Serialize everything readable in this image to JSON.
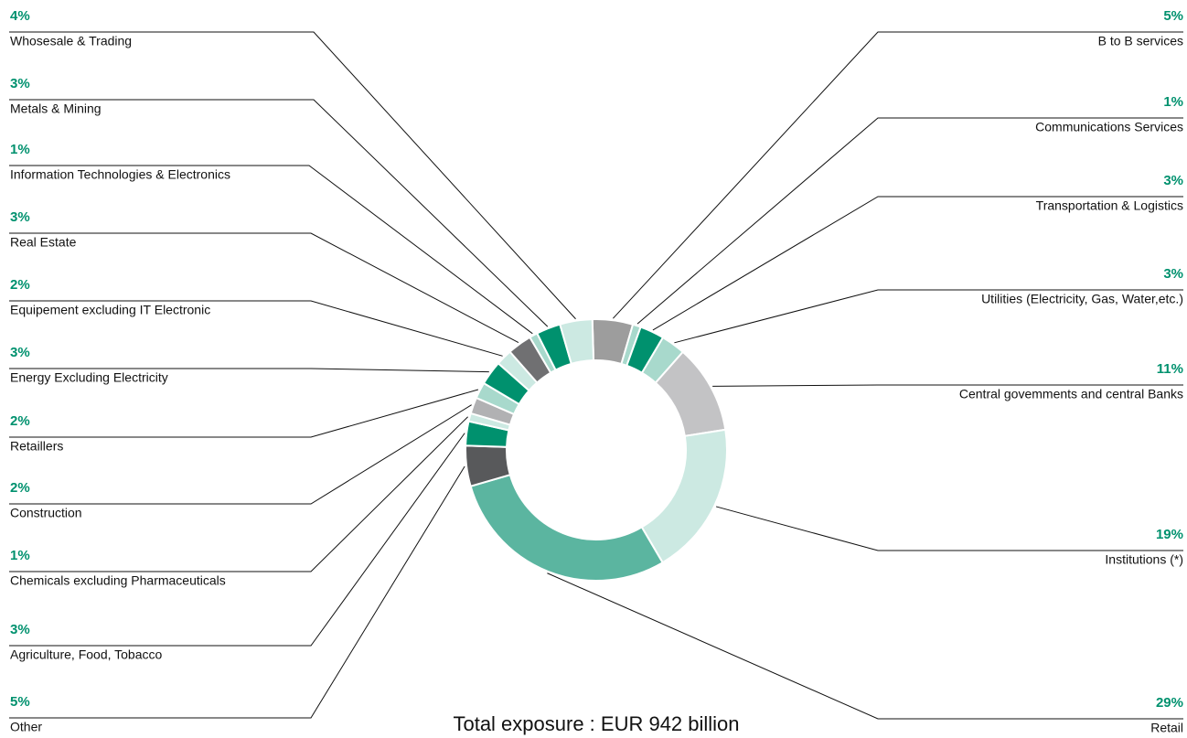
{
  "chart_data": {
    "type": "donut",
    "title": "Total exposure : EUR 942 billion",
    "categories": [
      "B to B services",
      "Communications Services",
      "Transportation & Logistics",
      "Utilities (Electricity, Gas, Water,etc.)",
      "Central govemments and central Banks",
      "Institutions (*)",
      "Retail",
      "Other",
      "Agriculture, Food, Tobacco",
      "Chemicals excluding Pharmaceuticals",
      "Construction",
      "Retaillers",
      "Energy Excluding Electricity",
      "Equipement excluding IT Electronic",
      "Real Estate",
      "Information Technologies & Electronics",
      "Metals & Mining",
      "Whosesale & Trading"
    ],
    "values": [
      5,
      1,
      3,
      3,
      11,
      19,
      29,
      5,
      3,
      1,
      2,
      2,
      3,
      2,
      3,
      1,
      3,
      4
    ],
    "value_labels": [
      "5%",
      "1%",
      "3%",
      "3%",
      "11%",
      "19%",
      "29%",
      "5%",
      "3%",
      "1%",
      "2%",
      "2%",
      "3%",
      "2%",
      "3%",
      "1%",
      "3%",
      "4%"
    ],
    "colors": [
      "#9d9d9d",
      "#a8d9cc",
      "#00916e",
      "#a8d9cc",
      "#c3c3c5",
      "#cce9e2",
      "#5bb5a0",
      "#58595b",
      "#00916e",
      "#cce9e2",
      "#b1b1b3",
      "#a8d9cc",
      "#00916e",
      "#cce9e2",
      "#707072",
      "#a8d9cc",
      "#00916e",
      "#cce9e2"
    ]
  }
}
